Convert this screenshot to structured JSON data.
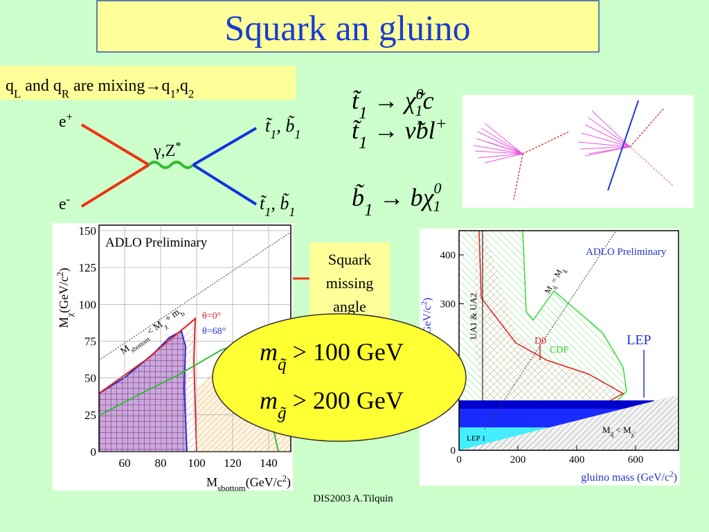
{
  "title": "Squark an gluino",
  "mixing": [
    "q",
    "L",
    " and q",
    "R",
    " are mixing→q",
    "1",
    ",q",
    "2"
  ],
  "feynman": {
    "e_plus": [
      "e",
      "+"
    ],
    "e_minus": [
      "e",
      "-"
    ],
    "boson": [
      "γ,Z",
      "*"
    ],
    "final_top": [
      "t̃",
      "1",
      ", ",
      "b̃",
      "1"
    ],
    "final_bottom": [
      "t̃",
      "1",
      ", ",
      "b̃",
      "1"
    ]
  },
  "decays": [
    [
      "t̃",
      "1",
      " → ",
      "χ̃",
      "0",
      "1",
      "c"
    ],
    [
      "t̃",
      "1",
      " → ",
      "ν̃bl",
      "+"
    ],
    [
      "b̃",
      "1",
      " → ",
      "bχ",
      "0",
      "1"
    ]
  ],
  "left_plot": {
    "title": "ADLO Preliminary",
    "y_label": [
      "M",
      "χ",
      "(GeV/c",
      "2",
      ")"
    ],
    "x_label": [
      "M",
      "sbottom",
      "(GeV/c",
      "2",
      ")"
    ],
    "diagonal": [
      "M",
      "sbottom",
      " < M",
      "χ",
      " + m",
      "b"
    ],
    "legend": [
      "θ=0°",
      "θ=68°"
    ],
    "yticks": [
      "0",
      "25",
      "50",
      "75",
      "100",
      "125",
      "150"
    ],
    "xticks": [
      "60",
      "80",
      "100",
      "120",
      "140"
    ]
  },
  "callout": [
    "Squark",
    "missing",
    "angle"
  ],
  "limits": [
    [
      "m",
      "q̃",
      " > 100 GeV"
    ],
    [
      "m",
      "g̃",
      " > 200 GeV"
    ]
  ],
  "right_plot": {
    "title": "ADLO Preliminary",
    "y_label": [
      "squark mass (GeV/c",
      "2",
      ")"
    ],
    "x_label": [
      "gluino mass (GeV/c",
      "2",
      ")"
    ],
    "ua": "UA1 & UA2",
    "d0": "D0",
    "cdf": "CDF",
    "lep": "LEP",
    "lep1": "LEP 1",
    "below": [
      "M",
      "q̃",
      " < M",
      "χ̃"
    ],
    "diagonal": [
      "M",
      "q̃",
      " = M",
      "g̃"
    ],
    "yticks": [
      "0",
      "300",
      "400"
    ],
    "xticks": [
      "0",
      "200",
      "400",
      "600"
    ]
  },
  "footer": "DIS2003 A.Tilquin"
}
